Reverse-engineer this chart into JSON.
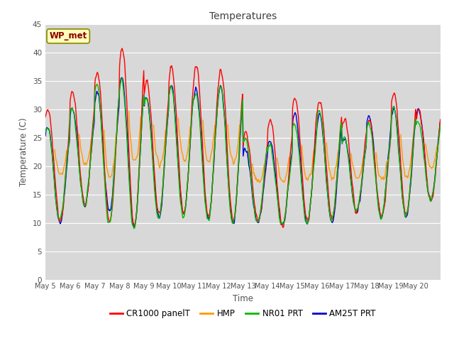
{
  "title": "Temperatures",
  "ylabel": "Temperature (C)",
  "xlabel": "Time",
  "ylim": [
    0,
    45
  ],
  "yticks": [
    0,
    5,
    10,
    15,
    20,
    25,
    30,
    35,
    40,
    45
  ],
  "legend_label": "WP_met",
  "series_labels": [
    "CR1000 panelT",
    "HMP",
    "NR01 PRT",
    "AM25T PRT"
  ],
  "series_colors": [
    "#ff0000",
    "#ff9900",
    "#00bb00",
    "#0000cc"
  ],
  "fig_color": "#ffffff",
  "plot_bg": "#d8d8d8",
  "grid_color": "#ffffff",
  "n_days": 16,
  "points_per_day": 48,
  "day_labels": [
    "May 5",
    "May 6",
    "May 7",
    "May 8",
    "May 9",
    "May 10",
    "May 11",
    "May 12",
    "May 13",
    "May 14",
    "May 15",
    "May 16",
    "May 17",
    "May 18",
    "May 19",
    "May 20"
  ],
  "daily_max_cr1000": [
    30,
    33,
    36.5,
    41,
    35,
    37.5,
    37.5,
    37,
    26,
    28,
    32,
    31.5,
    28,
    28,
    33,
    30
  ],
  "daily_min_cr1000": [
    10.5,
    13,
    10,
    9.5,
    11.5,
    11.5,
    11,
    10.5,
    10.5,
    9.5,
    10.5,
    11,
    12,
    11,
    11.5,
    14
  ],
  "daily_max_hmp": [
    29,
    32.5,
    35.5,
    40.5,
    35,
    37,
    36,
    36,
    25.5,
    27.5,
    31,
    31,
    27.5,
    27.5,
    33,
    29.5
  ],
  "daily_min_hmp": [
    18.5,
    20,
    18,
    20.5,
    20,
    21,
    21,
    20.5,
    17,
    17,
    17.5,
    18,
    18,
    17.5,
    18,
    20
  ],
  "daily_max_nr01": [
    27,
    30,
    34.5,
    35,
    32,
    34,
    33,
    34,
    25,
    23.5,
    27.5,
    29.5,
    25,
    27.5,
    30,
    28
  ],
  "daily_min_nr01": [
    10.5,
    13,
    10,
    9,
    11,
    11,
    10.5,
    10,
    10,
    9.5,
    10,
    10.5,
    12,
    11,
    11,
    14
  ],
  "daily_max_am25t": [
    27,
    30,
    33,
    35.5,
    32,
    34,
    33.5,
    34,
    23,
    24.5,
    29,
    29,
    25,
    29,
    30,
    30
  ],
  "daily_min_am25t": [
    10,
    13,
    12,
    9.5,
    11,
    11.5,
    11,
    10,
    10,
    9.5,
    10,
    10,
    12,
    11,
    11,
    14
  ]
}
